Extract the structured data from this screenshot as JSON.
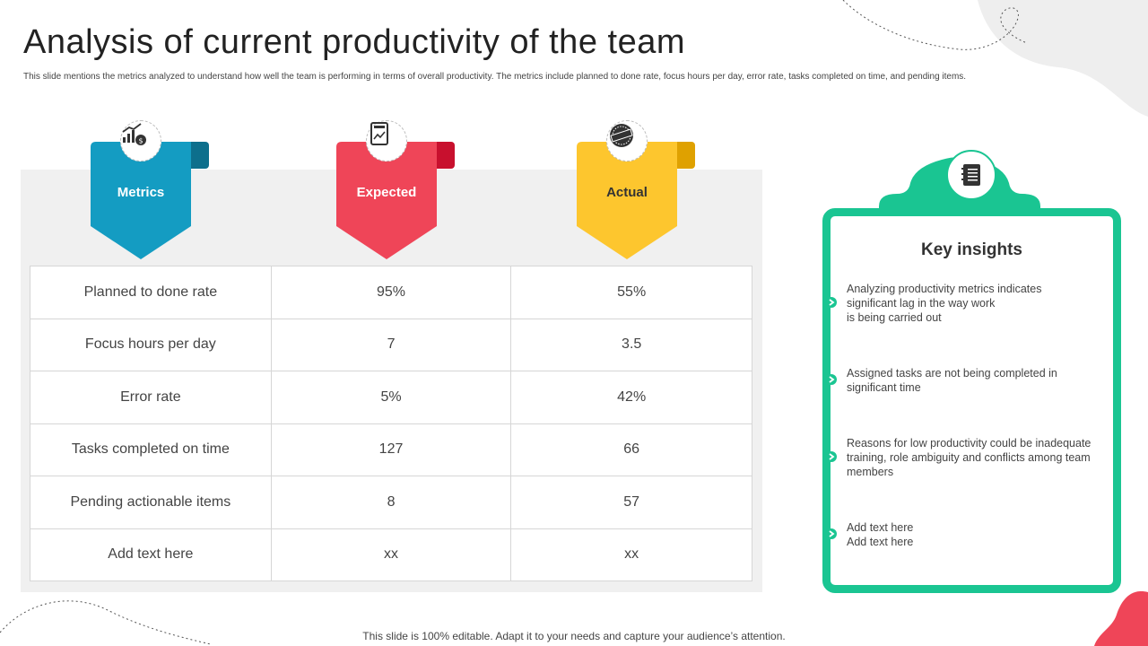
{
  "header": {
    "title": "Analysis of current productivity of the team",
    "subtitle": "This slide mentions the metrics analyzed to understand how well the team is performing in terms of overall productivity. The metrics include planned to done rate, focus hours per day, error rate, tasks completed on time, and pending items."
  },
  "columns": [
    {
      "label": "Metrics",
      "icon": "chart-money-icon",
      "color": "#149cc2",
      "fold": "#0d6f8c"
    },
    {
      "label": "Expected",
      "icon": "document-chart-icon",
      "color": "#ef4558",
      "fold": "#c8102e"
    },
    {
      "label": "Actual",
      "icon": "actual-stamp-icon",
      "color": "#fdc62e",
      "fold": "#dfa100"
    }
  ],
  "rows": [
    {
      "metric": "Planned to done rate",
      "expected": "95%",
      "actual": "55%"
    },
    {
      "metric": "Focus hours per day",
      "expected": "7",
      "actual": "3.5"
    },
    {
      "metric": "Error rate",
      "expected": "5%",
      "actual": "42%"
    },
    {
      "metric": "Tasks completed on time",
      "expected": "127",
      "actual": "66"
    },
    {
      "metric": "Pending actionable items",
      "expected": "8",
      "actual": "57"
    },
    {
      "metric": "Add text here",
      "expected": "xx",
      "actual": "xx"
    }
  ],
  "insights": {
    "title": "Key insights",
    "icon": "notebook-icon",
    "accent": "#1ac592",
    "items": [
      "Analyzing productivity metrics indicates\nsignificant lag in the way work\nis being carried out",
      "Assigned tasks are not being completed in\nsignificant time",
      "Reasons for low productivity could be inadequate\ntraining, role ambiguity and conflicts among team\nmembers",
      "Add text here\nAdd text here"
    ]
  },
  "footer": "This slide is 100% editable. Adapt it to your needs and capture your audience’s attention."
}
